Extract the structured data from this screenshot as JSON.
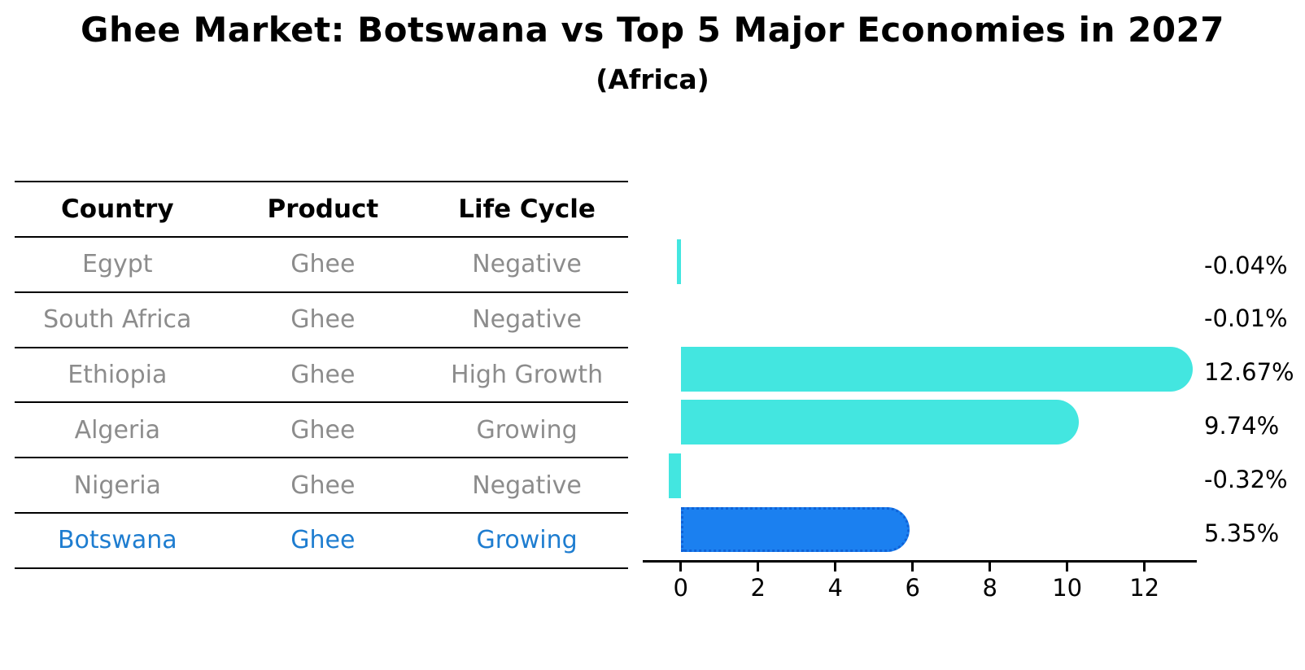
{
  "title": "Ghee Market: Botswana vs Top 5 Major Economies in 2027",
  "subtitle": "(Africa)",
  "table": {
    "headers": [
      "Country",
      "Product",
      "Life Cycle"
    ],
    "rows": [
      {
        "country": "Egypt",
        "product": "Ghee",
        "life_cycle": "Negative",
        "highlighted": false
      },
      {
        "country": "South Africa",
        "product": "Ghee",
        "life_cycle": "Negative",
        "highlighted": false
      },
      {
        "country": "Ethiopia",
        "product": "Ghee",
        "life_cycle": "High Growth",
        "highlighted": false
      },
      {
        "country": "Algeria",
        "product": "Ghee",
        "life_cycle": "Growing",
        "highlighted": false
      },
      {
        "country": "Nigeria",
        "product": "Ghee",
        "life_cycle": "Negative",
        "highlighted": false
      },
      {
        "country": "Botswana",
        "product": "Ghee",
        "life_cycle": "Growing",
        "highlighted": true
      }
    ]
  },
  "chart_data": {
    "type": "bar",
    "orientation": "horizontal",
    "title": "Ghee Market: Botswana vs Top 5 Major Economies in 2027",
    "subtitle": "(Africa)",
    "categories": [
      "Egypt",
      "South Africa",
      "Ethiopia",
      "Algeria",
      "Nigeria",
      "Botswana"
    ],
    "values": [
      -0.04,
      -0.01,
      12.67,
      9.74,
      -0.32,
      5.35
    ],
    "value_labels": [
      "-0.04%",
      "-0.01%",
      "12.67%",
      "9.74%",
      "-0.32%",
      "5.35%"
    ],
    "x_ticks": [
      0,
      2,
      4,
      6,
      8,
      10,
      12
    ],
    "xlim": [
      -1.0,
      13.35
    ],
    "grid": false,
    "legend": false,
    "highlight_index": 5
  },
  "colors": {
    "bar": "#43E6E0",
    "highlight_bar": "#1B80F0",
    "highlight_bar_border": "#0F62D8",
    "highlight_text": "#1E7DD0",
    "row_text": "#8C8C8C",
    "header_text": "#000000",
    "axis": "#000000"
  }
}
